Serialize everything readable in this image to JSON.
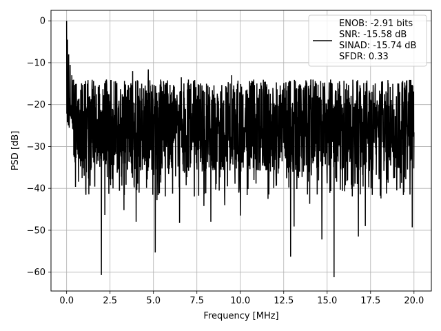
{
  "chart_data": {
    "type": "line",
    "title": "",
    "xlabel": "Frequency [MHz]",
    "ylabel": "PSD [dB]",
    "xlim": [
      -0.9,
      21.0
    ],
    "ylim": [
      -64.5,
      2.5
    ],
    "xticks": [
      0.0,
      2.5,
      5.0,
      7.5,
      10.0,
      12.5,
      15.0,
      17.5,
      20.0
    ],
    "xtick_labels": [
      "0.0",
      "2.5",
      "5.0",
      "7.5",
      "10.0",
      "12.5",
      "15.0",
      "17.5",
      "20.0"
    ],
    "yticks": [
      0,
      -10,
      -20,
      -30,
      -40,
      -50,
      -60
    ],
    "ytick_labels": [
      "0",
      "−10",
      "−20",
      "−30",
      "−40",
      "−50",
      "−60"
    ],
    "grid": true,
    "legend_position": "top-right",
    "legend_entries": [
      "ENOB: -2.91 bits",
      "SNR: -15.58 dB",
      "SINAD: -15.74 dB",
      "SFDR: 0.33"
    ],
    "line_color": "#000000",
    "grid_color": "#b0b0b0",
    "series": [
      {
        "name": "ENOB: -2.91 bits\nSNR: -15.58 dB\nSINAD: -15.74 dB\nSFDR: 0.33",
        "x_range": [
          0.0,
          20.0
        ],
        "num_points": 2000,
        "baseline_db": -25.0,
        "upper_envelope_db": -14.0,
        "lower_envelope_db": -36.0,
        "peak": {
          "x": 0.0,
          "y": 0.0
        },
        "notable_dips": [
          {
            "x": 2.0,
            "y": -60.7
          },
          {
            "x": 5.1,
            "y": -55.3
          },
          {
            "x": 12.9,
            "y": -56.3
          },
          {
            "x": 15.4,
            "y": -61.2
          },
          {
            "x": 14.7,
            "y": -52.2
          },
          {
            "x": 4.0,
            "y": -48.0
          },
          {
            "x": 6.5,
            "y": -48.2
          },
          {
            "x": 8.3,
            "y": -48.0
          },
          {
            "x": 10.0,
            "y": -46.5
          },
          {
            "x": 13.1,
            "y": -49.1
          },
          {
            "x": 16.8,
            "y": -51.5
          },
          {
            "x": 17.2,
            "y": -49.0
          },
          {
            "x": 19.9,
            "y": -49.3
          },
          {
            "x": 2.2,
            "y": -46.4
          },
          {
            "x": 3.3,
            "y": -45.2
          },
          {
            "x": 9.1,
            "y": -44.0
          },
          {
            "x": 1.1,
            "y": -40.2
          },
          {
            "x": 2.5,
            "y": -37.8
          },
          {
            "x": 5.2,
            "y": -42.8
          },
          {
            "x": 7.9,
            "y": -44.2
          },
          {
            "x": 11.6,
            "y": -42.5
          },
          {
            "x": 14.0,
            "y": -43.7
          },
          {
            "x": 18.1,
            "y": -42.4
          },
          {
            "x": 19.2,
            "y": -40.0
          }
        ],
        "notable_peaks": [
          {
            "x": 0.05,
            "y": -4.5
          },
          {
            "x": 0.12,
            "y": -8.0
          },
          {
            "x": 0.2,
            "y": -10.5
          },
          {
            "x": 0.3,
            "y": -13.0
          },
          {
            "x": 3.8,
            "y": -12.0
          },
          {
            "x": 4.7,
            "y": -11.6
          },
          {
            "x": 9.5,
            "y": -13.0
          },
          {
            "x": 6.6,
            "y": -13.5
          }
        ]
      }
    ]
  }
}
